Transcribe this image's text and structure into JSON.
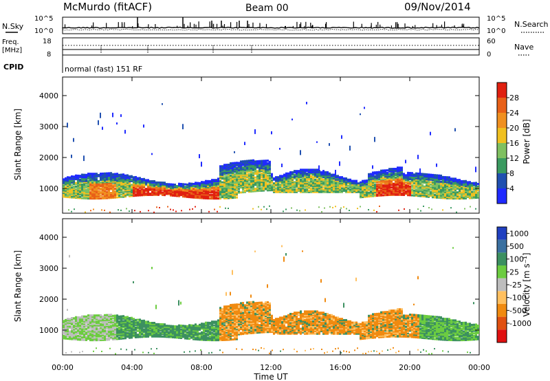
{
  "header": {
    "radar": "McMurdo (fitACF)",
    "beam": "Beam 00",
    "date": "09/Nov/2014"
  },
  "sky_panel": {
    "left_label": "N.Sky",
    "right_label": "N.Search",
    "left_ticks": [
      "10^5",
      "10^0"
    ],
    "right_ticks": [
      "10^5",
      "10^0"
    ]
  },
  "freq_panel": {
    "left_label_line1": "Freq.",
    "left_label_line2": "[MHz]",
    "right_label": "Nave",
    "left_ticks": [
      "18",
      "8"
    ],
    "right_ticks": [
      "60",
      "0"
    ]
  },
  "cpid": {
    "label": "CPID",
    "text": "normal (fast) 151 RF"
  },
  "chart_data": [
    {
      "type": "heatmap",
      "name": "power",
      "ylabel": "Slant Range [km]",
      "ylim": [
        200,
        4600
      ],
      "yticks": [
        "1000",
        "2000",
        "3000",
        "4000"
      ],
      "colorbar_label": "Power [dB]",
      "colorbar_ticks": [
        "4",
        "8",
        "12",
        "16",
        "20",
        "24",
        "28"
      ],
      "colors": [
        "#1f2aff",
        "#2050b0",
        "#3a9a60",
        "#7fc060",
        "#f0c020",
        "#f09020",
        "#e86018",
        "#e02010"
      ],
      "echo_band_km": [
        600,
        1500
      ],
      "peak_power_times_ut": [
        "05:30",
        "07:30",
        "19:00"
      ]
    },
    {
      "type": "heatmap",
      "name": "velocity",
      "ylabel": "Slant Range [km]",
      "ylim": [
        200,
        4600
      ],
      "yticks": [
        "1000",
        "2000",
        "3000",
        "4000"
      ],
      "xlabel": "Time UT",
      "xticks": [
        "00:00",
        "04:00",
        "08:00",
        "12:00",
        "16:00",
        "20:00",
        "00:00"
      ],
      "colorbar_label": "Velocity [m s⁻¹]",
      "colorbar_ticks": [
        "1000",
        "500",
        "100",
        "25",
        "-25",
        "-100",
        "-500",
        "-1000"
      ],
      "colors": [
        "#2040c0",
        "#3a70a0",
        "#3c9060",
        "#6ccc40",
        "#bdbdbd",
        "#ffc060",
        "#f08a10",
        "#e05010",
        "#e01010"
      ],
      "echo_band_km": [
        500,
        1600
      ],
      "dominant_velocity_by_period": [
        {
          "from": "00:00",
          "to": "03:00",
          "class": "25"
        },
        {
          "from": "03:00",
          "to": "09:00",
          "class": "100"
        },
        {
          "from": "09:00",
          "to": "20:30",
          "class": "-100"
        },
        {
          "from": "20:30",
          "to": "24:00",
          "class": "100"
        }
      ]
    }
  ]
}
